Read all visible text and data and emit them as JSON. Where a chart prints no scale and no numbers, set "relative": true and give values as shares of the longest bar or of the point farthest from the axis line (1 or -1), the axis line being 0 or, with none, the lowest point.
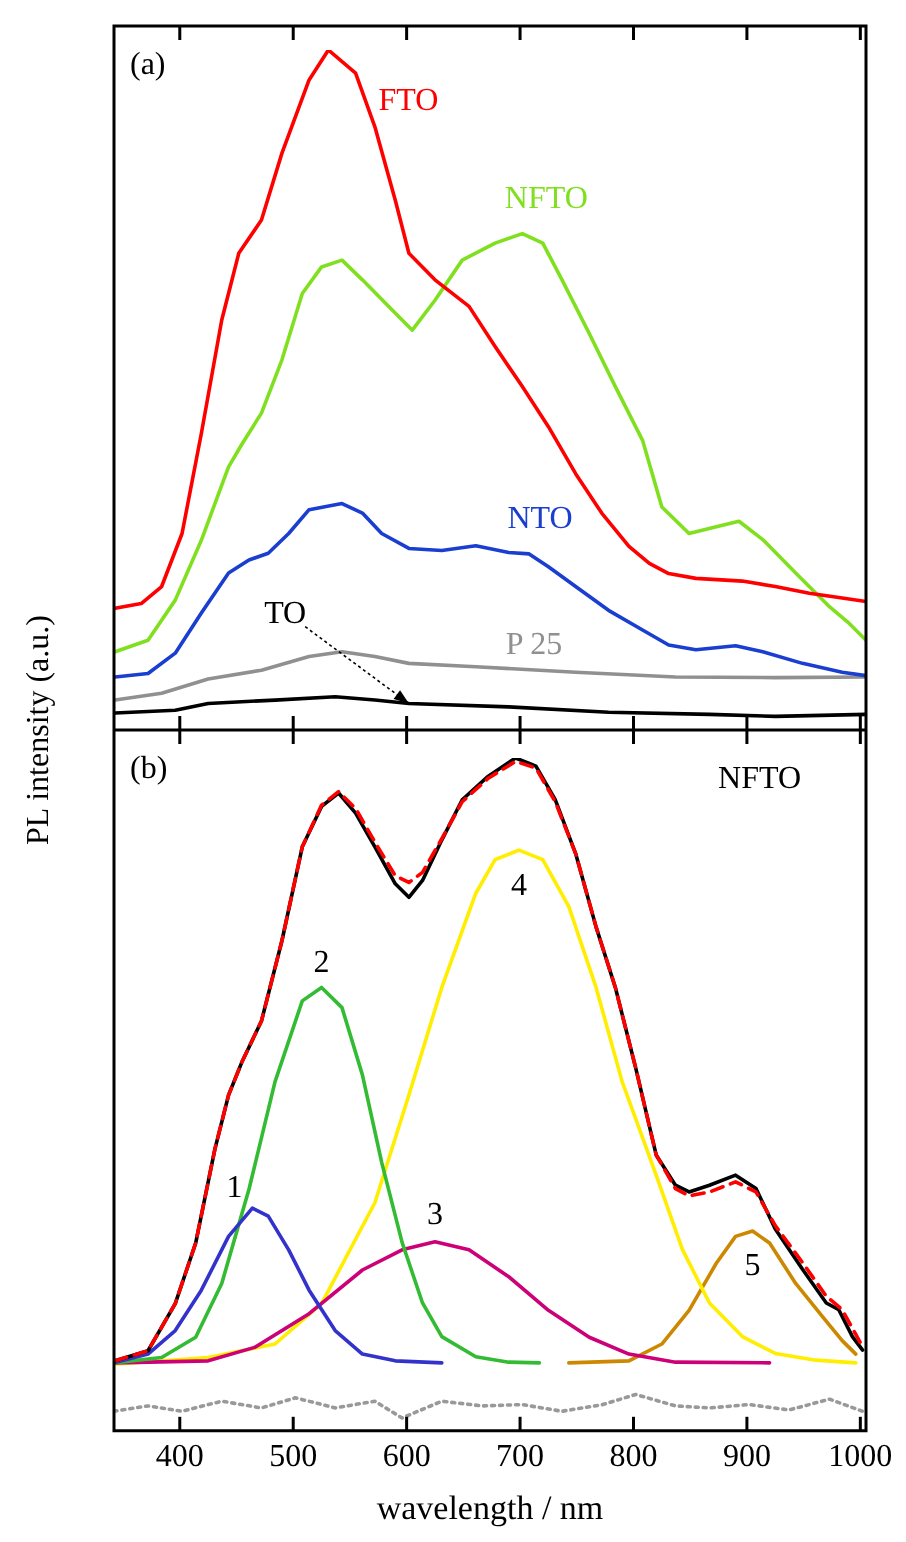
{
  "chart_data": [
    {
      "type": "line",
      "relative": true,
      "ylabel": "PL intensity (a.u.)",
      "xlim": [
        342,
        1005
      ],
      "xticks": [
        400,
        500,
        600,
        700,
        800,
        900,
        1000
      ],
      "tick_labels": false,
      "annotations": [
        "(a)"
      ],
      "series": [
        {
          "name": "FTO",
          "color": "#ff0000",
          "x": [
            343,
            366,
            384,
            402,
            419,
            437,
            452,
            472,
            490,
            514,
            531,
            555,
            572,
            590,
            602,
            625,
            655,
            678,
            702,
            725,
            749,
            772,
            796,
            814,
            831,
            855,
            896,
            925,
            955,
            984,
            1005
          ],
          "values": [
            0.179,
            0.186,
            0.211,
            0.289,
            0.436,
            0.603,
            0.701,
            0.75,
            0.848,
            0.956,
            1,
            0.966,
            0.887,
            0.779,
            0.701,
            0.662,
            0.623,
            0.564,
            0.505,
            0.446,
            0.377,
            0.319,
            0.27,
            0.245,
            0.23,
            0.223,
            0.219,
            0.211,
            0.201,
            0.194,
            0.189
          ]
        },
        {
          "name": "NFTO",
          "color": "#80e020",
          "x": [
            343,
            372,
            396,
            419,
            443,
            455,
            472,
            490,
            508,
            525,
            543,
            561,
            584,
            605,
            625,
            649,
            678,
            702,
            720,
            737,
            761,
            784,
            808,
            825,
            849,
            873,
            893,
            914,
            943,
            973,
            990,
            1005
          ],
          "values": [
            0.115,
            0.132,
            0.191,
            0.279,
            0.387,
            0.421,
            0.466,
            0.544,
            0.642,
            0.681,
            0.691,
            0.662,
            0.623,
            0.588,
            0.632,
            0.691,
            0.716,
            0.73,
            0.716,
            0.662,
            0.583,
            0.505,
            0.426,
            0.328,
            0.289,
            0.299,
            0.307,
            0.28,
            0.231,
            0.181,
            0.157,
            0.132
          ]
        },
        {
          "name": "NTO",
          "color": "#1a3fd0",
          "x": [
            343,
            372,
            396,
            419,
            443,
            461,
            478,
            496,
            514,
            543,
            561,
            578,
            602,
            631,
            661,
            690,
            708,
            725,
            749,
            778,
            808,
            831,
            855,
            890,
            914,
            949,
            984,
            1005
          ],
          "values": [
            0.078,
            0.083,
            0.113,
            0.172,
            0.231,
            0.25,
            0.26,
            0.289,
            0.324,
            0.333,
            0.319,
            0.289,
            0.267,
            0.264,
            0.271,
            0.261,
            0.259,
            0.24,
            0.211,
            0.176,
            0.147,
            0.125,
            0.118,
            0.124,
            0.115,
            0.098,
            0.085,
            0.08
          ]
        },
        {
          "name": "P 25",
          "color": "#909090",
          "x": [
            343,
            384,
            425,
            472,
            514,
            543,
            572,
            602,
            661,
            749,
            837,
            925,
            1005
          ],
          "values": [
            0.044,
            0.054,
            0.075,
            0.088,
            0.108,
            0.115,
            0.108,
            0.098,
            0.093,
            0.085,
            0.078,
            0.077,
            0.078
          ]
        },
        {
          "name": "TO",
          "color": "#000000",
          "x": [
            343,
            396,
            425,
            484,
            537,
            572,
            602,
            690,
            778,
            867,
            925,
            1005
          ],
          "values": [
            0.025,
            0.029,
            0.039,
            0.044,
            0.049,
            0.044,
            0.039,
            0.034,
            0.026,
            0.023,
            0.02,
            0.023
          ]
        }
      ]
    },
    {
      "type": "line",
      "relative": true,
      "xlabel": "wavelength / nm",
      "xlim": [
        342,
        1005
      ],
      "xticks": [
        400,
        500,
        600,
        700,
        800,
        900,
        1000
      ],
      "tick_labels": "x",
      "annotations": [
        "(b)"
      ],
      "series": [
        {
          "name": "NFTO",
          "color": "#000000",
          "x": [
            343,
            372,
            396,
            414,
            431,
            443,
            455,
            472,
            490,
            508,
            525,
            540,
            555,
            572,
            590,
            602,
            614,
            631,
            649,
            672,
            696,
            714,
            731,
            749,
            767,
            784,
            802,
            820,
            837,
            849,
            867,
            890,
            908,
            925,
            949,
            970,
            981,
            993,
            1002
          ],
          "values": [
            0.104,
            0.119,
            0.189,
            0.279,
            0.419,
            0.499,
            0.549,
            0.609,
            0.728,
            0.868,
            0.928,
            0.948,
            0.918,
            0.868,
            0.813,
            0.793,
            0.818,
            0.878,
            0.938,
            0.973,
            1,
            0.988,
            0.938,
            0.858,
            0.749,
            0.659,
            0.539,
            0.41,
            0.365,
            0.355,
            0.365,
            0.38,
            0.36,
            0.3,
            0.24,
            0.19,
            0.18,
            0.14,
            0.12
          ]
        },
        {
          "color": "#ff0000",
          "line_style": "dashed",
          "x": [
            343,
            372,
            396,
            414,
            431,
            443,
            455,
            472,
            490,
            508,
            525,
            540,
            555,
            572,
            590,
            602,
            614,
            631,
            649,
            672,
            696,
            714,
            731,
            749,
            767,
            784,
            802,
            820,
            837,
            849,
            867,
            890,
            908,
            925,
            949,
            970,
            984,
            1002
          ],
          "values": [
            0.104,
            0.119,
            0.189,
            0.279,
            0.419,
            0.499,
            0.549,
            0.609,
            0.728,
            0.868,
            0.93,
            0.95,
            0.925,
            0.875,
            0.825,
            0.815,
            0.83,
            0.88,
            0.935,
            0.97,
            0.995,
            0.985,
            0.935,
            0.858,
            0.749,
            0.659,
            0.539,
            0.41,
            0.36,
            0.349,
            0.355,
            0.37,
            0.355,
            0.305,
            0.25,
            0.2,
            0.18,
            0.125
          ]
        },
        {
          "name": "1",
          "color": "#3333cc",
          "x": [
            342,
            372,
            396,
            419,
            443,
            464,
            478,
            496,
            514,
            537,
            561,
            590,
            631
          ],
          "values": [
            0.101,
            0.114,
            0.149,
            0.209,
            0.289,
            0.331,
            0.319,
            0.269,
            0.209,
            0.149,
            0.114,
            0.104,
            0.101
          ]
        },
        {
          "name": "2",
          "color": "#33bb33",
          "x": [
            342,
            384,
            414,
            437,
            461,
            484,
            508,
            525,
            543,
            561,
            578,
            596,
            614,
            631,
            661,
            690,
            717
          ],
          "values": [
            0.101,
            0.109,
            0.139,
            0.219,
            0.359,
            0.519,
            0.639,
            0.659,
            0.629,
            0.529,
            0.399,
            0.28,
            0.19,
            0.14,
            0.11,
            0.102,
            0.101
          ]
        },
        {
          "name": "3",
          "color": "#cc0077",
          "x": [
            342,
            425,
            466,
            514,
            561,
            596,
            625,
            655,
            690,
            725,
            761,
            796,
            837,
            920
          ],
          "values": [
            0.101,
            0.104,
            0.124,
            0.174,
            0.239,
            0.269,
            0.281,
            0.269,
            0.229,
            0.179,
            0.139,
            0.114,
            0.102,
            0.101
          ]
        },
        {
          "name": "4",
          "color": "#ffee00",
          "x": [
            342,
            425,
            484,
            525,
            572,
            602,
            631,
            661,
            678,
            699,
            720,
            743,
            767,
            790,
            820,
            843,
            867,
            896,
            925,
            961,
            996
          ],
          "values": [
            0.099,
            0.109,
            0.129,
            0.189,
            0.339,
            0.499,
            0.659,
            0.799,
            0.849,
            0.863,
            0.849,
            0.779,
            0.659,
            0.519,
            0.38,
            0.27,
            0.19,
            0.14,
            0.115,
            0.105,
            0.101
          ]
        },
        {
          "name": "5",
          "color": "#cc8800",
          "x": [
            743,
            796,
            825,
            849,
            873,
            890,
            905,
            920,
            943,
            967,
            984,
            996
          ],
          "values": [
            0.101,
            0.104,
            0.129,
            0.179,
            0.249,
            0.289,
            0.297,
            0.279,
            0.219,
            0.169,
            0.134,
            0.114
          ]
        },
        {
          "color": "#999999",
          "line_style": "dotted",
          "x": [
            342,
            372,
            402,
            437,
            472,
            502,
            537,
            572,
            596,
            631,
            667,
            702,
            737,
            773,
            802,
            837,
            867,
            902,
            937,
            973,
            1002
          ],
          "values": [
            0.029,
            0.037,
            0.029,
            0.044,
            0.034,
            0.049,
            0.034,
            0.044,
            0.019,
            0.044,
            0.037,
            0.039,
            0.029,
            0.039,
            0.054,
            0.037,
            0.034,
            0.039,
            0.031,
            0.047,
            0.029
          ]
        }
      ]
    }
  ]
}
